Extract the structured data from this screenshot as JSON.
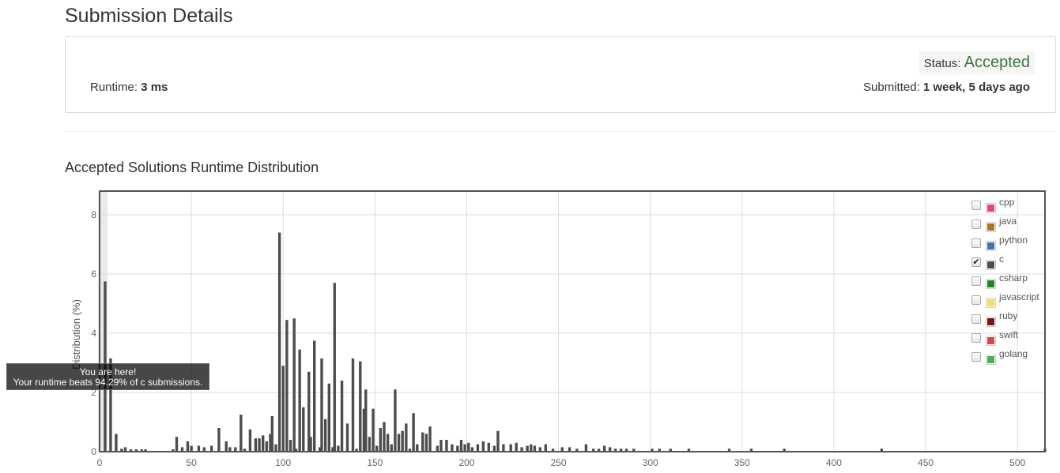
{
  "page": {
    "title": "Submission Details"
  },
  "details": {
    "status_label": "Status:",
    "status_value": "Accepted",
    "status_color": "#3c763d",
    "runtime_label": "Runtime:",
    "runtime_value": "3 ms",
    "submitted_label": "Submitted:",
    "submitted_value": "1 week, 5 days ago"
  },
  "section": {
    "title": "Accepted Solutions Runtime Distribution"
  },
  "legend": [
    {
      "label": "cpp",
      "color": "#e8457d",
      "checked": false
    },
    {
      "label": "java",
      "color": "#b0741e",
      "checked": false
    },
    {
      "label": "python",
      "color": "#3a75b0",
      "checked": false
    },
    {
      "label": "c",
      "color": "#4d4d4d",
      "checked": true
    },
    {
      "label": "csharp",
      "color": "#1c8a1c",
      "checked": false
    },
    {
      "label": "javascript",
      "color": "#f0e05a",
      "checked": false
    },
    {
      "label": "ruby",
      "color": "#7a1414",
      "checked": false
    },
    {
      "label": "swift",
      "color": "#d44a4a",
      "checked": false
    },
    {
      "label": "golang",
      "color": "#4caf50",
      "checked": false
    }
  ],
  "tooltip": {
    "line1": "You are here!",
    "line2": "Your runtime beats 94.29% of c submissions."
  },
  "chart_data": {
    "type": "bar",
    "title": "",
    "xlabel": "",
    "ylabel": "Distribution (%)",
    "xlim": [
      0,
      515
    ],
    "ylim": [
      0,
      8.8
    ],
    "xticks": [
      0,
      50,
      100,
      150,
      200,
      250,
      300,
      350,
      400,
      450,
      500
    ],
    "yticks": [
      0,
      2,
      4,
      6,
      8
    ],
    "grid": true,
    "series_name": "c",
    "bar_color": "#4d4d4d",
    "highlight_x": 3,
    "x": [
      3,
      6,
      9,
      12,
      14,
      17,
      20,
      23,
      25,
      40,
      42,
      45,
      48,
      50,
      54,
      57,
      61,
      65,
      69,
      71,
      74,
      77,
      79,
      82,
      85,
      87,
      89,
      91,
      93,
      94,
      96,
      98,
      100,
      102,
      104,
      106,
      107,
      109,
      111,
      114,
      115,
      117,
      120,
      121,
      123,
      125,
      127,
      128,
      130,
      132,
      135,
      138,
      140,
      142,
      144,
      145,
      147,
      149,
      151,
      153,
      155,
      157,
      159,
      161,
      163,
      165,
      167,
      169,
      171,
      173,
      176,
      178,
      180,
      184,
      186,
      189,
      192,
      195,
      197,
      199,
      201,
      203,
      206,
      209,
      212,
      215,
      217,
      220,
      224,
      227,
      230,
      233,
      235,
      237,
      240,
      243,
      247,
      252,
      256,
      260,
      265,
      269,
      272,
      275,
      278,
      281,
      284,
      287,
      291,
      301,
      305,
      311,
      321,
      343,
      355,
      373,
      426,
      515
    ],
    "values": [
      5.75,
      3.15,
      0.6,
      0.1,
      0.15,
      0.08,
      0.08,
      0.08,
      0.08,
      0.08,
      0.5,
      0.15,
      0.35,
      0.2,
      0.2,
      0.15,
      0.2,
      0.8,
      0.35,
      0.15,
      0.15,
      1.25,
      0.1,
      0.75,
      0.45,
      0.45,
      0.55,
      0.35,
      0.6,
      1.2,
      0.25,
      7.4,
      2.9,
      4.45,
      0.4,
      4.5,
      0.1,
      3.45,
      1.5,
      2.7,
      0.5,
      3.75,
      0.15,
      3.15,
      1.1,
      2.3,
      0.15,
      5.7,
      0.2,
      2.4,
      0.95,
      3.15,
      0.1,
      3.05,
      1.45,
      2.1,
      0.5,
      1.45,
      0.2,
      0.8,
      1.0,
      0.6,
      0.25,
      2.1,
      0.6,
      0.7,
      0.95,
      0.1,
      1.3,
      0.25,
      0.65,
      0.6,
      0.85,
      0.2,
      0.4,
      0.4,
      0.25,
      0.2,
      0.4,
      0.25,
      0.3,
      0.15,
      0.25,
      0.35,
      0.3,
      0.2,
      0.7,
      0.25,
      0.25,
      0.3,
      0.15,
      0.2,
      0.25,
      0.2,
      0.15,
      0.25,
      0.1,
      0.15,
      0.15,
      0.1,
      0.25,
      0.1,
      0.1,
      0.2,
      0.15,
      0.1,
      0.1,
      0.1,
      0.1,
      0.1,
      0.1,
      0.1,
      0.1,
      0.1,
      0.1,
      0.1,
      0.1,
      0.1
    ]
  }
}
